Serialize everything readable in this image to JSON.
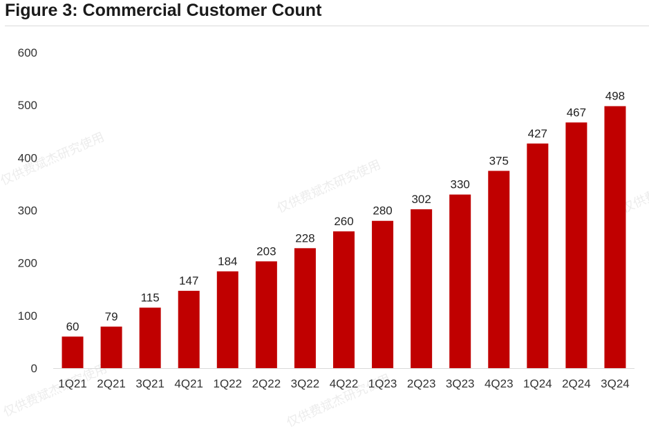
{
  "figure": {
    "title": "Figure 3: Commercial Customer Count",
    "watermark": "仅供费斌杰研究使用"
  },
  "colors": {
    "bar": "#c00000",
    "axis": "#d9d9d9"
  },
  "chart_data": {
    "type": "bar",
    "title": "",
    "xlabel": "",
    "ylabel": "",
    "ylim": [
      0,
      600
    ],
    "yticks": [
      0,
      100,
      200,
      300,
      400,
      500,
      600
    ],
    "grid": false,
    "categories": [
      "1Q21",
      "2Q21",
      "3Q21",
      "4Q21",
      "1Q22",
      "2Q22",
      "3Q22",
      "4Q22",
      "1Q23",
      "2Q23",
      "3Q23",
      "4Q23",
      "1Q24",
      "2Q24",
      "3Q24"
    ],
    "values": [
      60,
      79,
      115,
      147,
      184,
      203,
      228,
      260,
      280,
      302,
      330,
      375,
      427,
      467,
      498
    ],
    "data_labels": true
  }
}
